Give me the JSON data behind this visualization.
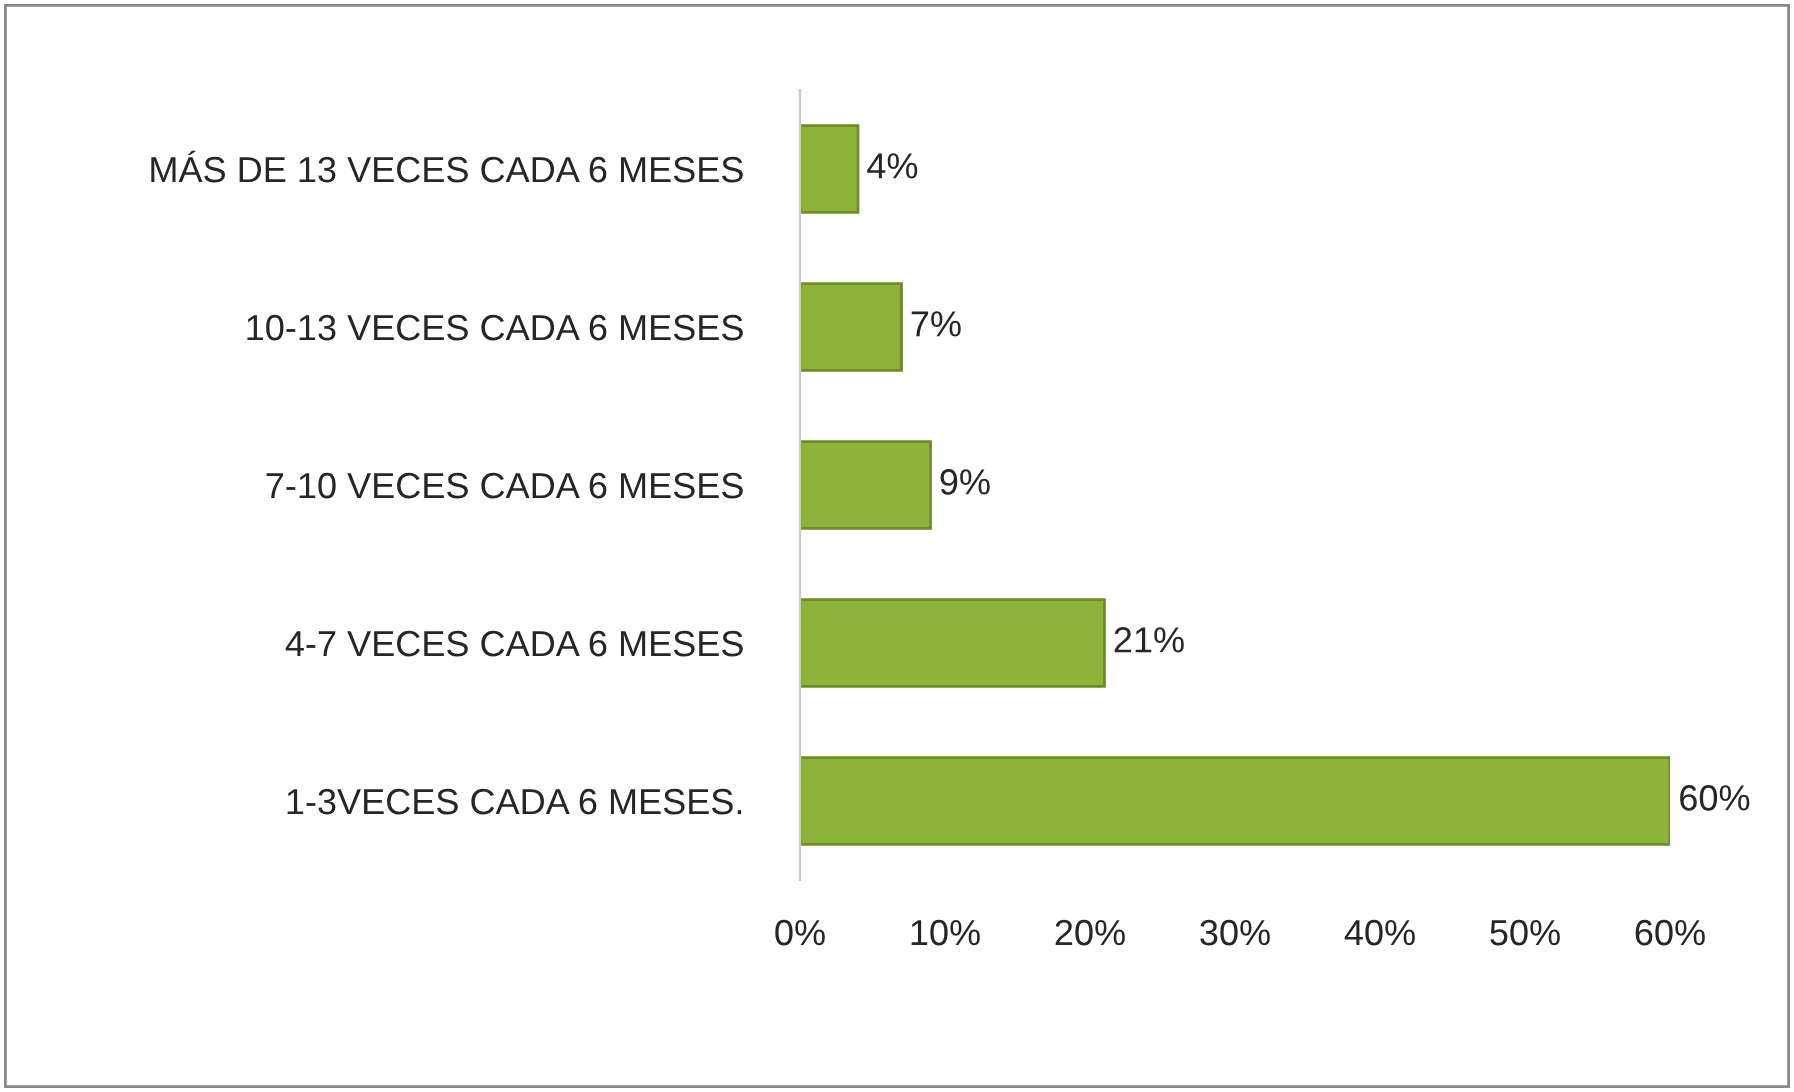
{
  "chart_data": {
    "type": "bar",
    "orientation": "horizontal",
    "categories": [
      "MÁS DE 13 VECES CADA 6 MESES",
      "10-13 VECES CADA 6 MESES",
      "7-10 VECES CADA 6 MESES",
      "4-7 VECES CADA 6 MESES",
      "1-3VECES CADA 6 MESES."
    ],
    "values": [
      4,
      7,
      9,
      21,
      60
    ],
    "value_labels": [
      "4%",
      "7%",
      "9%",
      "21%",
      "60%"
    ],
    "color": "#8db33a",
    "xlim": [
      0,
      60
    ],
    "xticks": [
      {
        "value": 0,
        "label": "0%"
      },
      {
        "value": 10,
        "label": "10%"
      },
      {
        "value": 20,
        "label": "20%"
      },
      {
        "value": 30,
        "label": "30%"
      },
      {
        "value": 40,
        "label": "40%"
      },
      {
        "value": 50,
        "label": "50%"
      },
      {
        "value": 60,
        "label": "60%"
      }
    ],
    "grid": false,
    "legend": false
  }
}
